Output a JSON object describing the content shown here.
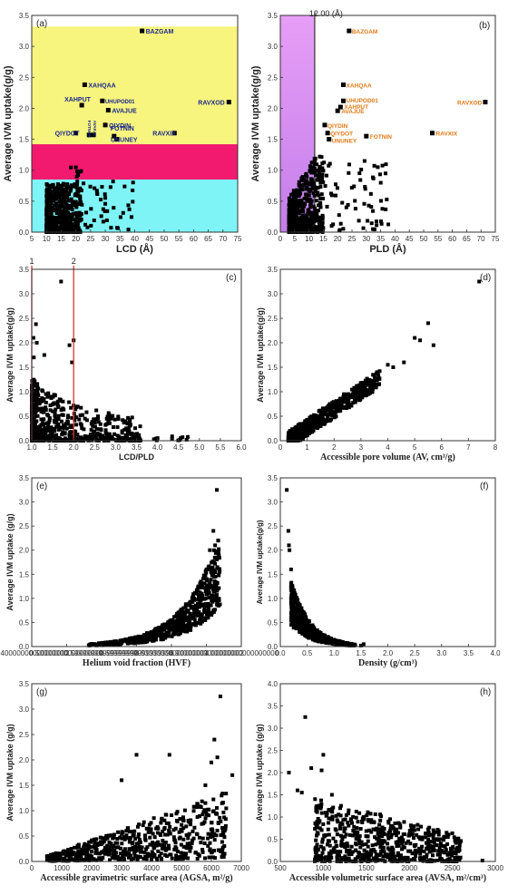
{
  "chart_data": [
    {
      "id": "a",
      "type": "scatter",
      "panel_label": "(a)",
      "xlabel": "LCD (Å)",
      "ylabel": "Average IVM uptake(g/g)",
      "xlim": [
        5,
        75
      ],
      "ylim": [
        0,
        3.5
      ],
      "xticks": [
        5,
        10,
        15,
        20,
        25,
        30,
        35,
        40,
        45,
        50,
        55,
        60,
        65,
        70,
        75
      ],
      "yticks": [
        0.0,
        0.5,
        1.0,
        1.5,
        2.0,
        2.5,
        3.0,
        3.5
      ],
      "bands": [
        {
          "y0": 0.0,
          "y1": 0.85,
          "color": "#7ff4f6"
        },
        {
          "y0": 0.85,
          "y1": 1.42,
          "color": "#f21a6e"
        },
        {
          "y0": 1.42,
          "y1": 3.32,
          "color": "#f8f57e"
        }
      ],
      "highlighted": [
        {
          "name": "BAZGAM",
          "x": 42.5,
          "y": 3.25
        },
        {
          "name": "XAHQAA",
          "x": 23.0,
          "y": 2.38
        },
        {
          "name": "XAHPUT",
          "x": 22.0,
          "y": 2.05
        },
        {
          "name": "UHUPOD01",
          "x": 29.0,
          "y": 2.12
        },
        {
          "name": "AVAJUE",
          "x": 31.0,
          "y": 1.97
        },
        {
          "name": "RAVXOD",
          "x": 72.0,
          "y": 2.1
        },
        {
          "name": "QIYDIN",
          "x": 30.0,
          "y": 1.73
        },
        {
          "name": "FOTNIN",
          "x": 33.0,
          "y": 1.55
        },
        {
          "name": "UNUNEY",
          "x": 34.0,
          "y": 1.5
        },
        {
          "name": "QIYDOT",
          "x": 20.0,
          "y": 1.6
        },
        {
          "name": "RAVXIX",
          "x": 53.5,
          "y": 1.6
        },
        {
          "name": "FOTNOH",
          "x": 24.5,
          "y": 1.57
        },
        {
          "name": "AVAKAL",
          "x": 26.0,
          "y": 1.57
        }
      ]
    },
    {
      "id": "b",
      "type": "scatter",
      "panel_label": "(b)",
      "xlabel": "PLD (Å)",
      "ylabel": "Average IVM uptake(g/g)",
      "xlim": [
        0,
        75
      ],
      "ylim": [
        0,
        3.5
      ],
      "xticks": [
        0,
        5,
        10,
        15,
        20,
        25,
        30,
        35,
        40,
        45,
        50,
        55,
        60,
        65,
        70,
        75
      ],
      "yticks": [
        0.0,
        0.5,
        1.0,
        1.5,
        2.0,
        2.5,
        3.0,
        3.5
      ],
      "threshold_label": "12.00 (Å)",
      "threshold_x": 12.0,
      "highlighted": [
        {
          "name": "BAZGAM",
          "x": 24.0,
          "y": 3.25
        },
        {
          "name": "XAHQAA",
          "x": 22.0,
          "y": 2.38
        },
        {
          "name": "UHUPOD01",
          "x": 22.0,
          "y": 2.12
        },
        {
          "name": "XAHPUT",
          "x": 21.0,
          "y": 2.02
        },
        {
          "name": "AVAJUE",
          "x": 20.0,
          "y": 1.96
        },
        {
          "name": "RAVXOD",
          "x": 71.5,
          "y": 2.1
        },
        {
          "name": "QIYDIN",
          "x": 15.5,
          "y": 1.73
        },
        {
          "name": "QIYDOT",
          "x": 16.5,
          "y": 1.6
        },
        {
          "name": "UNUNEY",
          "x": 17.0,
          "y": 1.5
        },
        {
          "name": "FOTNIN",
          "x": 30.0,
          "y": 1.55
        },
        {
          "name": "RAVXIX",
          "x": 53.0,
          "y": 1.6
        }
      ]
    },
    {
      "id": "c",
      "type": "scatter",
      "panel_label": "(c)",
      "xlabel": "LCD/PLD",
      "ylabel": "Average IVM uptake(g/g)",
      "xlim": [
        1.0,
        6.0
      ],
      "ylim": [
        0,
        3.5
      ],
      "xticks": [
        1.0,
        1.5,
        2.0,
        2.5,
        3.0,
        3.5,
        4.0,
        4.5,
        5.0,
        5.5,
        6.0
      ],
      "yticks": [
        0.0,
        0.5,
        1.0,
        1.5,
        2.0,
        2.5,
        3.0,
        3.5
      ],
      "ref_lines": [
        {
          "label": "1",
          "x": 1.0
        },
        {
          "label": "2",
          "x": 2.0
        }
      ]
    },
    {
      "id": "d",
      "type": "scatter",
      "panel_label": "(d)",
      "xlabel": "Accessible pore volume (AV, cm³/g)",
      "ylabel": "Average IVM uptake(g/g)",
      "xlim": [
        0,
        8
      ],
      "ylim": [
        0,
        3.5
      ],
      "xticks": [
        0,
        1,
        2,
        3,
        4,
        5,
        6,
        7,
        8
      ],
      "yticks": [
        0.0,
        0.5,
        1.0,
        1.5,
        2.0,
        2.5,
        3.0,
        3.5
      ]
    },
    {
      "id": "e",
      "type": "scatter",
      "panel_label": "(e)",
      "xlabel": "Helium void fraction (HVF)",
      "ylabel": "Average IVM uptake (g/g)",
      "xlim": [
        0.4,
        1.0
      ],
      "ylim": [
        0,
        3.5
      ],
      "xticks": [
        0.4,
        0.5,
        0.6,
        0.7,
        0.8,
        0.9,
        1.0
      ],
      "yticks": [
        0.0,
        0.5,
        1.0,
        1.5,
        2.0,
        2.5,
        3.0,
        3.5
      ]
    },
    {
      "id": "f",
      "type": "scatter",
      "panel_label": "(f)",
      "xlabel": "Density (g/cm³)",
      "ylabel": "Average IVM uptake(g/g)",
      "xlim": [
        0,
        4.0
      ],
      "ylim": [
        0,
        3.5
      ],
      "xticks": [
        0.0,
        0.5,
        1.0,
        1.5,
        2.0,
        2.5,
        3.0,
        3.5,
        4.0
      ],
      "yticks": [
        0.0,
        0.5,
        1.0,
        1.5,
        2.0,
        2.5,
        3.0,
        3.5
      ]
    },
    {
      "id": "g",
      "type": "scatter",
      "panel_label": "(g)",
      "xlabel": "Accessible gravimetric surface area (AGSA, m²/g)",
      "ylabel": "Average IVM uptake (g/g)",
      "xlim": [
        0,
        7000
      ],
      "ylim": [
        0,
        3.5
      ],
      "xticks": [
        0,
        1000,
        2000,
        3000,
        4000,
        5000,
        6000,
        7000
      ],
      "yticks": [
        0.0,
        0.5,
        1.0,
        1.5,
        2.0,
        2.5,
        3.0,
        3.5
      ]
    },
    {
      "id": "h",
      "type": "scatter",
      "panel_label": "(h)",
      "xlabel": "Accessible volumetric surface area (AVSA, m²/cm³)",
      "ylabel": "Average IVM uptake (g/g)",
      "xlim": [
        500,
        3000
      ],
      "ylim": [
        0,
        4.0
      ],
      "xticks": [
        500,
        1000,
        1500,
        2000,
        2500,
        3000
      ],
      "yticks": [
        0.0,
        0.5,
        1.0,
        1.5,
        2.0,
        2.5,
        3.0,
        3.5,
        4.0
      ]
    }
  ]
}
